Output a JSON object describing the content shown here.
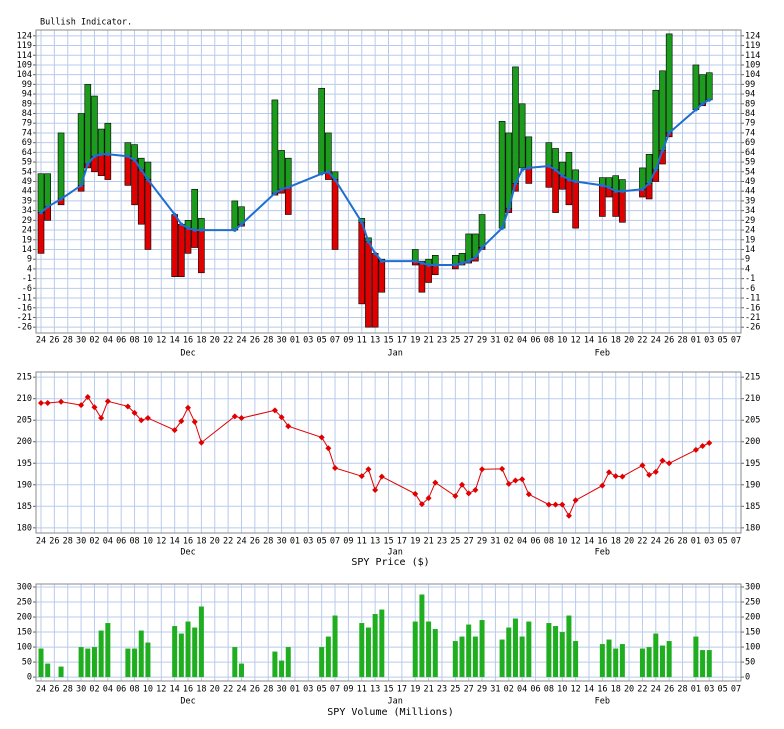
{
  "chart_data": [
    {
      "type": "range",
      "title": "Bullish Indicator.",
      "xlim": [
        -0.75,
        104.75
      ],
      "xticks": [
        {
          "value": 0,
          "label": "24"
        },
        {
          "value": 2,
          "label": "26"
        },
        {
          "value": 4,
          "label": "28"
        },
        {
          "value": 6,
          "label": "30"
        },
        {
          "value": 8,
          "label": "02"
        },
        {
          "value": 10,
          "label": "04"
        },
        {
          "value": 12,
          "label": "06"
        },
        {
          "value": 14,
          "label": "08"
        },
        {
          "value": 16,
          "label": "10"
        },
        {
          "value": 18,
          "label": "12"
        },
        {
          "value": 20,
          "label": "14"
        },
        {
          "value": 22,
          "label": "16"
        },
        {
          "value": 24,
          "label": "18"
        },
        {
          "value": 26,
          "label": "20"
        },
        {
          "value": 28,
          "label": "22"
        },
        {
          "value": 30,
          "label": "24"
        },
        {
          "value": 32,
          "label": "26"
        },
        {
          "value": 34,
          "label": "28"
        },
        {
          "value": 36,
          "label": "30"
        },
        {
          "value": 38,
          "label": "01"
        },
        {
          "value": 40,
          "label": "03"
        },
        {
          "value": 42,
          "label": "05"
        },
        {
          "value": 44,
          "label": "07"
        },
        {
          "value": 46,
          "label": "09"
        },
        {
          "value": 48,
          "label": "11"
        },
        {
          "value": 50,
          "label": "13"
        },
        {
          "value": 52,
          "label": "15"
        },
        {
          "value": 54,
          "label": "17"
        },
        {
          "value": 56,
          "label": "19"
        },
        {
          "value": 58,
          "label": "21"
        },
        {
          "value": 60,
          "label": "23"
        },
        {
          "value": 62,
          "label": "25"
        },
        {
          "value": 64,
          "label": "27"
        },
        {
          "value": 66,
          "label": "29"
        },
        {
          "value": 68,
          "label": "31"
        },
        {
          "value": 70,
          "label": "02"
        },
        {
          "value": 72,
          "label": "04"
        },
        {
          "value": 74,
          "label": "06"
        },
        {
          "value": 76,
          "label": "08"
        },
        {
          "value": 78,
          "label": "10"
        },
        {
          "value": 80,
          "label": "12"
        },
        {
          "value": 82,
          "label": "14"
        },
        {
          "value": 84,
          "label": "16"
        },
        {
          "value": 86,
          "label": "18"
        },
        {
          "value": 88,
          "label": "20"
        },
        {
          "value": 90,
          "label": "22"
        },
        {
          "value": 92,
          "label": "24"
        },
        {
          "value": 94,
          "label": "26"
        },
        {
          "value": 96,
          "label": "28"
        },
        {
          "value": 98,
          "label": "01"
        },
        {
          "value": 100,
          "label": "03"
        },
        {
          "value": 102,
          "label": "05"
        },
        {
          "value": 104,
          "label": "07"
        }
      ],
      "month_labels": [
        {
          "value": 22,
          "label": "Dec"
        },
        {
          "value": 53,
          "label": "Jan"
        },
        {
          "value": 84,
          "label": "Feb"
        }
      ],
      "ylim": [
        -29,
        127
      ],
      "yticks": [
        -26,
        -21,
        -16,
        -11,
        -6,
        -1,
        4,
        9,
        14,
        19,
        24,
        29,
        34,
        39,
        44,
        49,
        54,
        59,
        64,
        69,
        74,
        79,
        84,
        89,
        94,
        99,
        104,
        109,
        114,
        119,
        124
      ],
      "grid": true,
      "up_color": "#1c9c1c",
      "down_color": "#e00000",
      "line_color": "#1e6fd0",
      "x": [
        0,
        1,
        3,
        6,
        7,
        8,
        9,
        10,
        13,
        14,
        15,
        16,
        20,
        21,
        22,
        23,
        24,
        29,
        30,
        35,
        36,
        37,
        42,
        43,
        44,
        48,
        49,
        50,
        51,
        56,
        57,
        58,
        59,
        62,
        63,
        64,
        65,
        66,
        69,
        70,
        71,
        72,
        73,
        76,
        77,
        78,
        79,
        80,
        84,
        85,
        86,
        87,
        90,
        91,
        92,
        93,
        94,
        98,
        99,
        100
      ],
      "high": [
        53,
        53,
        74,
        84,
        99,
        93,
        76,
        79,
        69,
        68,
        61,
        59,
        32,
        27,
        29,
        45,
        30,
        39,
        36,
        91,
        65,
        61,
        97,
        74,
        54,
        30,
        20,
        12,
        9,
        14,
        8,
        9,
        11,
        11,
        12,
        22,
        22,
        32,
        80,
        74,
        108,
        89,
        72,
        69,
        66,
        59,
        64,
        55,
        51,
        51,
        52,
        50,
        56,
        63,
        96,
        106,
        125,
        109,
        104,
        105
      ],
      "low": [
        12,
        29,
        37,
        44,
        56,
        54,
        52,
        50,
        47,
        37,
        27,
        14,
        0,
        0,
        12,
        15,
        2,
        24,
        26,
        42,
        43,
        32,
        53,
        50,
        14,
        -14,
        -26,
        -26,
        -8,
        6,
        -8,
        -3,
        1,
        4,
        6,
        7,
        8,
        14,
        25,
        33,
        44,
        56,
        48,
        46,
        33,
        45,
        37,
        25,
        31,
        41,
        31,
        28,
        41,
        40,
        49,
        58,
        72,
        86,
        88,
        91
      ],
      "line": [
        33,
        36,
        40,
        47,
        58,
        62,
        63,
        63,
        62,
        60,
        55,
        50,
        32,
        27,
        25,
        24,
        24,
        24,
        27,
        43,
        45,
        46,
        53,
        54,
        50,
        28,
        18,
        12,
        8,
        8,
        7,
        6,
        6,
        6,
        7,
        8,
        10,
        15,
        25,
        35,
        48,
        55,
        56,
        57,
        55,
        52,
        50,
        49,
        47,
        46,
        44,
        44,
        45,
        48,
        55,
        65,
        74,
        86,
        89,
        91
      ]
    },
    {
      "type": "line",
      "xlabel": "SPY Price ($)",
      "xlim": [
        -0.75,
        104.75
      ],
      "xticks": [
        {
          "value": 0,
          "label": "24"
        },
        {
          "value": 2,
          "label": "26"
        },
        {
          "value": 4,
          "label": "28"
        },
        {
          "value": 6,
          "label": "30"
        },
        {
          "value": 8,
          "label": "02"
        },
        {
          "value": 10,
          "label": "04"
        },
        {
          "value": 12,
          "label": "06"
        },
        {
          "value": 14,
          "label": "08"
        },
        {
          "value": 16,
          "label": "10"
        },
        {
          "value": 18,
          "label": "12"
        },
        {
          "value": 20,
          "label": "14"
        },
        {
          "value": 22,
          "label": "16"
        },
        {
          "value": 24,
          "label": "18"
        },
        {
          "value": 26,
          "label": "20"
        },
        {
          "value": 28,
          "label": "22"
        },
        {
          "value": 30,
          "label": "24"
        },
        {
          "value": 32,
          "label": "26"
        },
        {
          "value": 34,
          "label": "28"
        },
        {
          "value": 36,
          "label": "30"
        },
        {
          "value": 38,
          "label": "01"
        },
        {
          "value": 40,
          "label": "03"
        },
        {
          "value": 42,
          "label": "05"
        },
        {
          "value": 44,
          "label": "07"
        },
        {
          "value": 46,
          "label": "09"
        },
        {
          "value": 48,
          "label": "11"
        },
        {
          "value": 50,
          "label": "13"
        },
        {
          "value": 52,
          "label": "15"
        },
        {
          "value": 54,
          "label": "17"
        },
        {
          "value": 56,
          "label": "19"
        },
        {
          "value": 58,
          "label": "21"
        },
        {
          "value": 60,
          "label": "23"
        },
        {
          "value": 62,
          "label": "25"
        },
        {
          "value": 64,
          "label": "27"
        },
        {
          "value": 66,
          "label": "29"
        },
        {
          "value": 68,
          "label": "31"
        },
        {
          "value": 70,
          "label": "02"
        },
        {
          "value": 72,
          "label": "04"
        },
        {
          "value": 74,
          "label": "06"
        },
        {
          "value": 76,
          "label": "08"
        },
        {
          "value": 78,
          "label": "10"
        },
        {
          "value": 80,
          "label": "12"
        },
        {
          "value": 82,
          "label": "14"
        },
        {
          "value": 84,
          "label": "16"
        },
        {
          "value": 86,
          "label": "18"
        },
        {
          "value": 88,
          "label": "20"
        },
        {
          "value": 90,
          "label": "22"
        },
        {
          "value": 92,
          "label": "24"
        },
        {
          "value": 94,
          "label": "26"
        },
        {
          "value": 96,
          "label": "28"
        },
        {
          "value": 98,
          "label": "01"
        },
        {
          "value": 100,
          "label": "03"
        },
        {
          "value": 102,
          "label": "05"
        },
        {
          "value": 104,
          "label": "07"
        }
      ],
      "month_labels": [
        {
          "value": 22,
          "label": "Dec"
        },
        {
          "value": 53,
          "label": "Jan"
        },
        {
          "value": 84,
          "label": "Feb"
        }
      ],
      "ylim": [
        178.8,
        216.2
      ],
      "yticks": [
        180,
        185,
        190,
        195,
        200,
        205,
        210,
        215
      ],
      "grid": true,
      "color": "#e00000",
      "x": [
        0,
        1,
        3,
        6,
        7,
        8,
        9,
        10,
        13,
        14,
        15,
        16,
        20,
        21,
        22,
        23,
        24,
        29,
        30,
        35,
        36,
        37,
        42,
        43,
        44,
        48,
        49,
        50,
        51,
        56,
        57,
        58,
        59,
        62,
        63,
        64,
        65,
        66,
        69,
        70,
        71,
        72,
        73,
        76,
        77,
        78,
        79,
        80,
        84,
        85,
        86,
        87,
        90,
        91,
        92,
        93,
        94,
        98,
        99,
        100
      ],
      "values": [
        209.0,
        209.0,
        209.3,
        208.5,
        210.4,
        208.0,
        205.5,
        209.4,
        208.2,
        206.7,
        205.0,
        205.5,
        202.7,
        204.8,
        207.9,
        204.6,
        199.8,
        205.9,
        205.5,
        207.3,
        205.7,
        203.6,
        201.0,
        198.5,
        193.9,
        192.0,
        193.6,
        188.8,
        191.9,
        187.9,
        185.5,
        186.9,
        190.5,
        187.4,
        190.0,
        188.0,
        188.8,
        193.6,
        193.7,
        190.2,
        191.0,
        191.3,
        187.8,
        185.4,
        185.4,
        185.4,
        182.8,
        186.4,
        189.8,
        192.9,
        192.0,
        191.9,
        194.5,
        192.3,
        193.0,
        195.6,
        195.0,
        198.1,
        199.0,
        199.7
      ]
    },
    {
      "type": "bar",
      "xlabel": "SPY Volume (Millions)",
      "xlim": [
        -0.75,
        104.75
      ],
      "xticks": [
        {
          "value": 0,
          "label": "24"
        },
        {
          "value": 2,
          "label": "26"
        },
        {
          "value": 4,
          "label": "28"
        },
        {
          "value": 6,
          "label": "30"
        },
        {
          "value": 8,
          "label": "02"
        },
        {
          "value": 10,
          "label": "04"
        },
        {
          "value": 12,
          "label": "06"
        },
        {
          "value": 14,
          "label": "08"
        },
        {
          "value": 16,
          "label": "10"
        },
        {
          "value": 18,
          "label": "12"
        },
        {
          "value": 20,
          "label": "14"
        },
        {
          "value": 22,
          "label": "16"
        },
        {
          "value": 24,
          "label": "18"
        },
        {
          "value": 26,
          "label": "20"
        },
        {
          "value": 28,
          "label": "22"
        },
        {
          "value": 30,
          "label": "24"
        },
        {
          "value": 32,
          "label": "26"
        },
        {
          "value": 34,
          "label": "28"
        },
        {
          "value": 36,
          "label": "30"
        },
        {
          "value": 38,
          "label": "01"
        },
        {
          "value": 40,
          "label": "03"
        },
        {
          "value": 42,
          "label": "05"
        },
        {
          "value": 44,
          "label": "07"
        },
        {
          "value": 46,
          "label": "09"
        },
        {
          "value": 48,
          "label": "11"
        },
        {
          "value": 50,
          "label": "13"
        },
        {
          "value": 52,
          "label": "15"
        },
        {
          "value": 54,
          "label": "17"
        },
        {
          "value": 56,
          "label": "19"
        },
        {
          "value": 58,
          "label": "21"
        },
        {
          "value": 60,
          "label": "23"
        },
        {
          "value": 62,
          "label": "25"
        },
        {
          "value": 64,
          "label": "27"
        },
        {
          "value": 66,
          "label": "29"
        },
        {
          "value": 68,
          "label": "31"
        },
        {
          "value": 70,
          "label": "02"
        },
        {
          "value": 72,
          "label": "04"
        },
        {
          "value": 74,
          "label": "06"
        },
        {
          "value": 76,
          "label": "08"
        },
        {
          "value": 78,
          "label": "10"
        },
        {
          "value": 80,
          "label": "12"
        },
        {
          "value": 82,
          "label": "14"
        },
        {
          "value": 84,
          "label": "16"
        },
        {
          "value": 86,
          "label": "18"
        },
        {
          "value": 88,
          "label": "20"
        },
        {
          "value": 90,
          "label": "22"
        },
        {
          "value": 92,
          "label": "24"
        },
        {
          "value": 94,
          "label": "26"
        },
        {
          "value": 96,
          "label": "28"
        },
        {
          "value": 98,
          "label": "01"
        },
        {
          "value": 100,
          "label": "03"
        },
        {
          "value": 102,
          "label": "05"
        },
        {
          "value": 104,
          "label": "07"
        }
      ],
      "month_labels": [
        {
          "value": 22,
          "label": "Dec"
        },
        {
          "value": 53,
          "label": "Jan"
        },
        {
          "value": 84,
          "label": "Feb"
        }
      ],
      "ylim": [
        -13,
        310
      ],
      "yticks": [
        0,
        50,
        100,
        150,
        200,
        250,
        300
      ],
      "grid": true,
      "color": "#1fae1f",
      "x": [
        0,
        1,
        3,
        6,
        7,
        8,
        9,
        10,
        13,
        14,
        15,
        16,
        20,
        21,
        22,
        23,
        24,
        29,
        30,
        35,
        36,
        37,
        42,
        43,
        44,
        48,
        49,
        50,
        51,
        56,
        57,
        58,
        59,
        62,
        63,
        64,
        65,
        66,
        69,
        70,
        71,
        72,
        73,
        76,
        77,
        78,
        79,
        80,
        84,
        85,
        86,
        87,
        90,
        91,
        92,
        93,
        94,
        98,
        99,
        100
      ],
      "values": [
        95,
        45,
        35,
        100,
        95,
        100,
        155,
        180,
        95,
        95,
        155,
        115,
        170,
        145,
        185,
        165,
        235,
        100,
        45,
        85,
        55,
        100,
        100,
        135,
        205,
        180,
        165,
        210,
        225,
        185,
        275,
        185,
        160,
        120,
        135,
        175,
        135,
        190,
        125,
        165,
        195,
        135,
        185,
        180,
        170,
        150,
        205,
        120,
        110,
        125,
        95,
        110,
        95,
        100,
        145,
        105,
        120,
        135,
        90,
        90
      ]
    }
  ]
}
